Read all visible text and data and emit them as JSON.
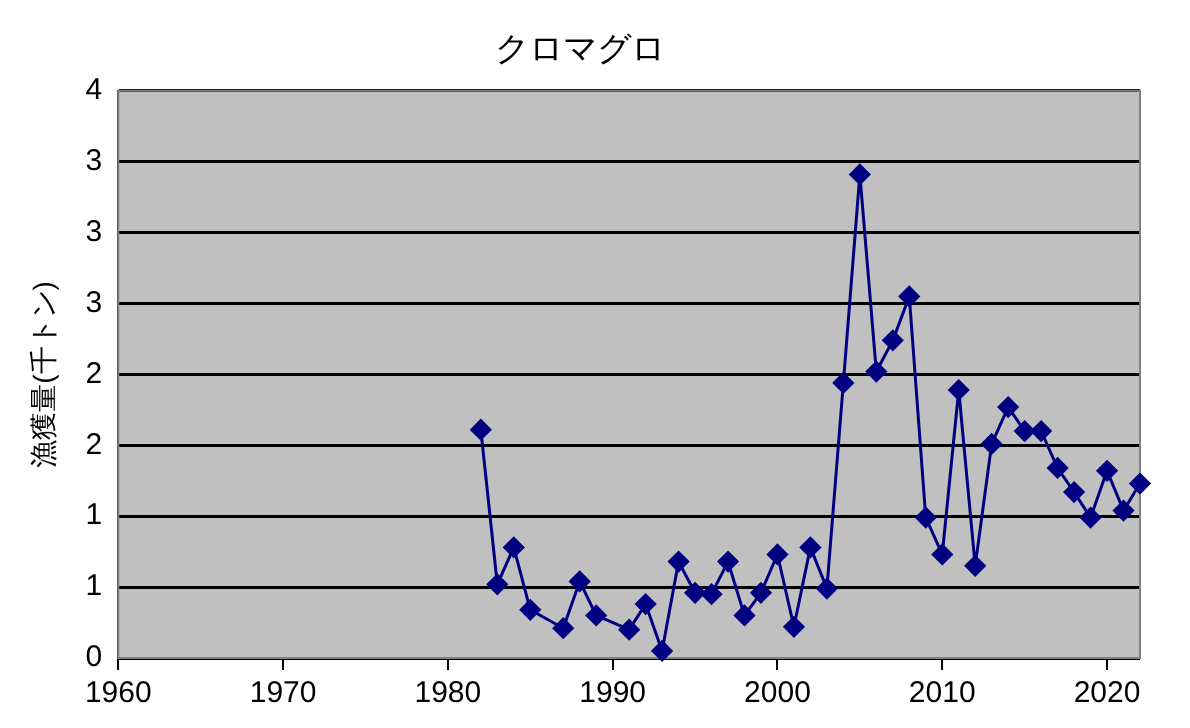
{
  "chart_data": {
    "type": "line",
    "title": "クロマグロ",
    "ylabel": "漁獲量(千トン)",
    "x": [
      1982,
      1983,
      1984,
      1985,
      1987,
      1988,
      1989,
      1991,
      1992,
      1993,
      1994,
      1995,
      1996,
      1997,
      1998,
      1999,
      2000,
      2001,
      2002,
      2003,
      2004,
      2005,
      2006,
      2007,
      2008,
      2009,
      2010,
      2011,
      2012,
      2013,
      2014,
      2015,
      2016,
      2017,
      2018,
      2019,
      2020,
      2021,
      2022
    ],
    "series": [
      {
        "color": "#000080",
        "values": [
          1.61,
          0.52,
          0.78,
          0.34,
          0.21,
          0.54,
          0.3,
          0.2,
          0.38,
          0.05,
          0.68,
          0.46,
          0.45,
          0.68,
          0.3,
          0.46,
          0.73,
          0.22,
          0.78,
          0.49,
          1.94,
          3.41,
          2.02,
          2.24,
          2.55,
          0.99,
          0.73,
          1.89,
          0.65,
          1.51,
          1.77,
          1.6,
          1.6,
          1.34,
          1.17,
          0.99,
          1.32,
          1.04,
          1.23
        ]
      }
    ],
    "xlim": [
      1960,
      2022
    ],
    "xticks": [
      1960,
      1970,
      1980,
      1990,
      2000,
      2010,
      2020
    ],
    "ylim": [
      0,
      4
    ],
    "yticks": [
      0,
      {
        "value": 0.5,
        "label": "1"
      },
      1,
      {
        "value": 1.5,
        "label": "2"
      },
      2,
      {
        "value": 2.5,
        "label": "3"
      },
      3,
      {
        "value": 3.5,
        "label": "3"
      },
      4
    ],
    "grid": "y",
    "legend": false,
    "marker": "diamond",
    "line_style": "solid"
  }
}
